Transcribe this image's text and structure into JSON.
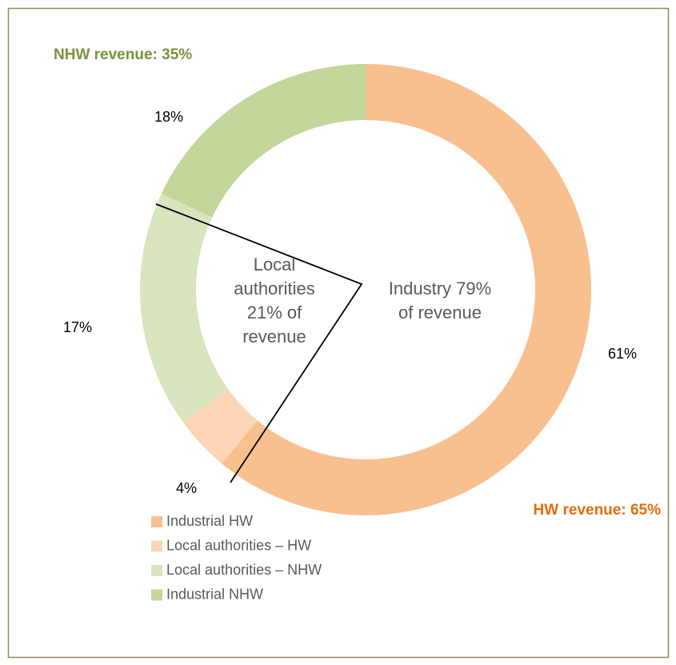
{
  "chart_data": {
    "type": "pie",
    "categories": [
      "Industrial HW",
      "Local authorities – HW",
      "Local authorities – NHW",
      "Industrial NHW"
    ],
    "values": [
      61,
      4,
      17,
      18
    ],
    "value_labels": [
      "61%",
      "4%",
      "17%",
      "18%"
    ],
    "colors": [
      "#f9c08f",
      "#fbd5b5",
      "#d7e4bd",
      "#c3d69b"
    ],
    "donut": true,
    "legend": "bottom-left",
    "annotations": [
      {
        "text": "NHW revenue: 35%",
        "color": "#77933c"
      },
      {
        "text": "HW revenue: 65%",
        "color": "#e36c09"
      }
    ],
    "center_labels": [
      [
        "Local",
        "authorities",
        "21% of",
        "revenue"
      ],
      [
        "Industry 79%",
        "of revenue"
      ]
    ]
  }
}
